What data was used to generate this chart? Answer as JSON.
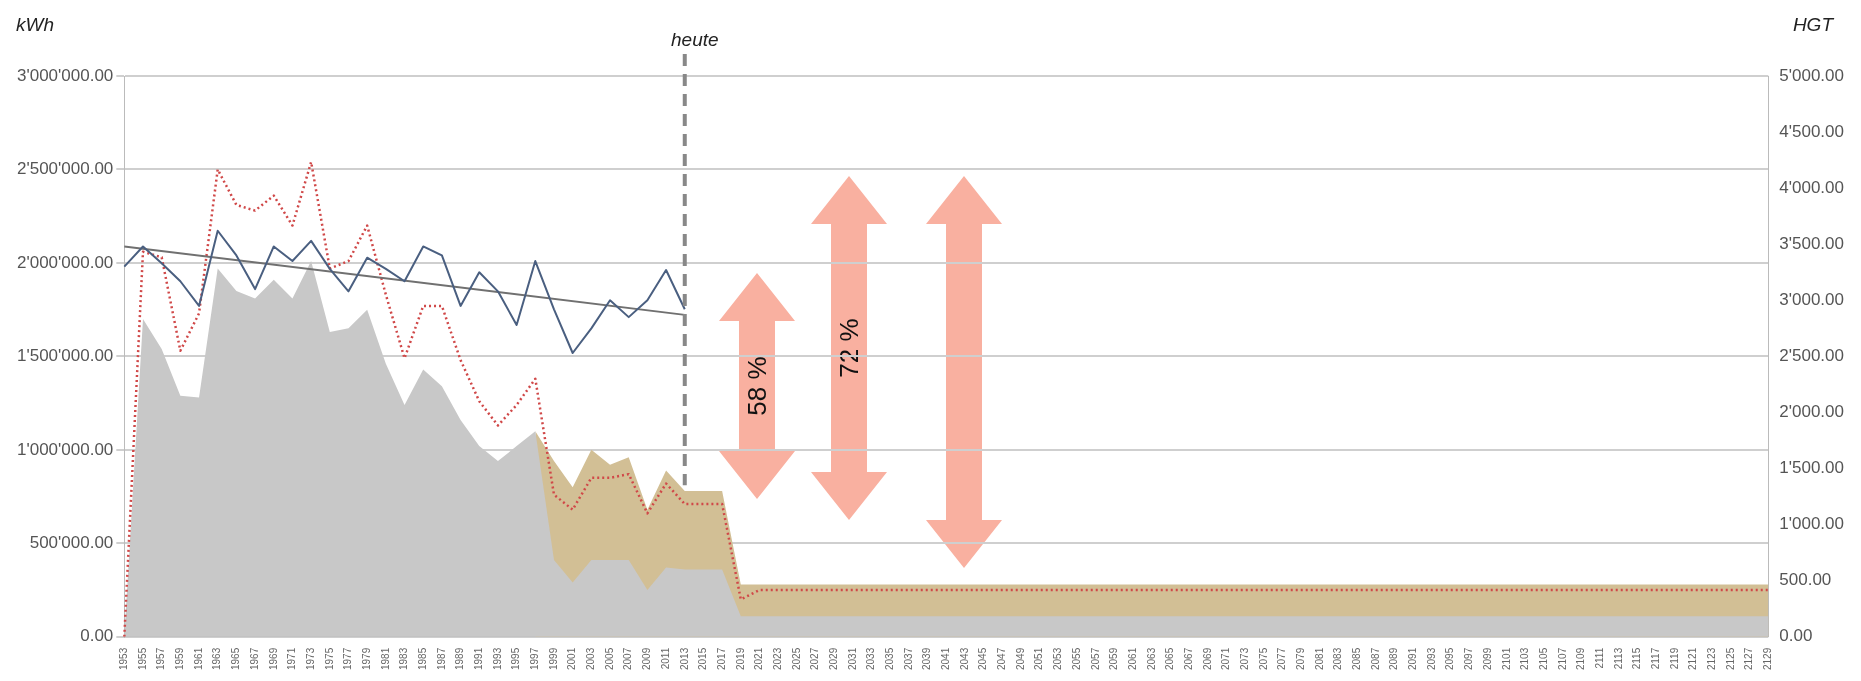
{
  "chart_data": {
    "type": "area",
    "ylabel": "kWh",
    "y2label": "HGT",
    "categories": [
      "1953",
      "1955",
      "1957",
      "1959",
      "1961",
      "1963",
      "1965",
      "1967",
      "1969",
      "1971",
      "1973",
      "1975",
      "1977",
      "1979",
      "1981",
      "1983",
      "1985",
      "1987",
      "1989",
      "1991",
      "1993",
      "1995",
      "1997",
      "1999",
      "2001",
      "2003",
      "2005",
      "2007",
      "2009",
      "2011",
      "2013",
      "2015",
      "2017",
      "2019",
      "2021",
      "2023",
      "2025",
      "2027",
      "2029",
      "2031",
      "2033",
      "2035",
      "2037",
      "2039",
      "2041",
      "2043",
      "2045",
      "2047",
      "2049",
      "2051",
      "2053",
      "2055",
      "2057",
      "2059",
      "2061",
      "2063",
      "2065",
      "2067",
      "2069",
      "2071",
      "2073",
      "2075",
      "2077",
      "2079",
      "2081",
      "2083",
      "2085",
      "2087",
      "2089",
      "2091",
      "2093",
      "2095",
      "2097",
      "2099",
      "2101",
      "2103",
      "2105",
      "2107",
      "2109",
      "2111",
      "2113",
      "2115",
      "2117",
      "2119",
      "2121",
      "2123",
      "2125",
      "2127",
      "2129"
    ],
    "series": [
      {
        "type": "line",
        "axis": "y2",
        "color": "#4a5f80",
        "line_style": "solid",
        "values": [
          3300,
          3480,
          3330,
          3170,
          2950,
          3620,
          3400,
          3100,
          3480,
          3350,
          3530,
          3280,
          3080,
          3380,
          3280,
          3170,
          3480,
          3400,
          2950,
          3250,
          3080,
          2780,
          3350,
          2920,
          2530,
          2750,
          3000,
          2850,
          3000,
          3270,
          2920,
          null,
          null,
          null,
          null,
          null,
          null,
          null,
          null,
          null,
          null,
          null,
          null,
          null,
          null,
          null,
          null,
          null,
          null,
          null,
          null,
          null,
          null,
          null,
          null,
          null,
          null,
          null,
          null,
          null,
          null,
          null,
          null,
          null,
          null,
          null,
          null,
          null,
          null,
          null,
          null,
          null,
          null,
          null,
          null,
          null,
          null,
          null,
          null,
          null,
          null,
          null,
          null,
          null,
          null,
          null,
          null,
          null,
          null
        ]
      },
      {
        "type": "line",
        "axis": "y2",
        "color": "#707070",
        "line_style": "solid",
        "values": [
          3480,
          null,
          null,
          null,
          null,
          null,
          null,
          null,
          null,
          null,
          null,
          null,
          null,
          null,
          null,
          null,
          null,
          null,
          null,
          null,
          null,
          null,
          null,
          null,
          null,
          null,
          null,
          null,
          null,
          null,
          2870,
          null,
          null,
          null,
          null,
          null,
          null,
          null,
          null,
          null,
          null,
          null,
          null,
          null,
          null,
          null,
          null,
          null,
          null,
          null,
          null,
          null,
          null,
          null,
          null,
          null,
          null,
          null,
          null,
          null,
          null,
          null,
          null,
          null,
          null,
          null,
          null,
          null,
          null,
          null,
          null,
          null,
          null,
          null,
          null,
          null,
          null,
          null,
          null,
          null,
          null,
          null,
          null,
          null,
          null,
          null,
          null,
          null,
          null
        ]
      },
      {
        "type": "line",
        "color": "#d04848",
        "line_style": "dotted",
        "values": [
          0,
          2060000,
          2030000,
          1530000,
          1730000,
          2500000,
          2310000,
          2280000,
          2360000,
          2200000,
          2540000,
          1970000,
          2010000,
          2200000,
          1830000,
          1490000,
          1770000,
          1770000,
          1480000,
          1260000,
          1130000,
          1240000,
          1380000,
          760000,
          680000,
          850000,
          850000,
          870000,
          660000,
          820000,
          710000,
          710000,
          710000,
          200000,
          250000,
          250000,
          250000,
          250000,
          250000,
          250000,
          250000,
          250000,
          250000,
          250000,
          250000,
          250000,
          250000,
          250000,
          250000,
          250000,
          250000,
          250000,
          250000,
          250000,
          250000,
          250000,
          250000,
          250000,
          250000,
          250000,
          250000,
          250000,
          250000,
          250000,
          250000,
          250000,
          250000,
          250000,
          250000,
          250000,
          250000,
          250000,
          250000,
          250000,
          250000,
          250000,
          250000,
          250000,
          250000,
          250000,
          250000,
          250000,
          250000,
          250000,
          250000,
          250000,
          250000,
          250000,
          250000
        ]
      },
      {
        "color": "#c8c8c8",
        "values": [
          0,
          1700000,
          1540000,
          1290000,
          1280000,
          1970000,
          1850000,
          1810000,
          1910000,
          1810000,
          2010000,
          1630000,
          1650000,
          1750000,
          1460000,
          1240000,
          1430000,
          1340000,
          1160000,
          1020000,
          940000,
          1020000,
          1100000,
          410000,
          290000,
          410000,
          410000,
          410000,
          250000,
          370000,
          360000,
          360000,
          360000,
          110000,
          110000,
          110000,
          110000,
          110000,
          110000,
          110000,
          110000,
          110000,
          110000,
          110000,
          110000,
          110000,
          110000,
          110000,
          110000,
          110000,
          110000,
          110000,
          110000,
          110000,
          110000,
          110000,
          110000,
          110000,
          110000,
          110000,
          110000,
          110000,
          110000,
          110000,
          110000,
          110000,
          110000,
          110000,
          110000,
          110000,
          110000,
          110000,
          110000,
          110000,
          110000,
          110000,
          110000,
          110000,
          110000,
          110000,
          110000,
          110000,
          110000,
          110000,
          110000,
          110000,
          110000,
          110000,
          110000
        ]
      },
      {
        "color": "#d2bf95",
        "values": [
          null,
          null,
          null,
          null,
          null,
          null,
          null,
          null,
          null,
          null,
          null,
          null,
          null,
          null,
          null,
          null,
          null,
          null,
          null,
          null,
          null,
          null,
          1100000,
          940000,
          800000,
          1000000,
          920000,
          960000,
          680000,
          890000,
          780000,
          780000,
          780000,
          280000,
          280000,
          280000,
          280000,
          280000,
          280000,
          280000,
          280000,
          280000,
          280000,
          280000,
          280000,
          280000,
          280000,
          280000,
          280000,
          280000,
          280000,
          280000,
          280000,
          280000,
          280000,
          280000,
          280000,
          280000,
          280000,
          280000,
          280000,
          280000,
          280000,
          280000,
          280000,
          280000,
          280000,
          280000,
          280000,
          280000,
          280000,
          280000,
          280000,
          280000,
          280000,
          280000,
          280000,
          280000,
          280000,
          280000,
          280000,
          280000,
          280000,
          280000,
          280000,
          280000,
          280000,
          280000,
          280000
        ]
      }
    ],
    "ylim": [
      0,
      3000000
    ],
    "yticks": [
      {
        "value": 0,
        "label": "0.00"
      },
      {
        "value": 500000,
        "label": "500'000.00"
      },
      {
        "value": 1000000,
        "label": "1'000'000.00"
      },
      {
        "value": 1500000,
        "label": "1'500'000.00"
      },
      {
        "value": 2000000,
        "label": "2'000'000.00"
      },
      {
        "value": 2500000,
        "label": "2'500'000.00"
      },
      {
        "value": 3000000,
        "label": "3'000'000.00"
      }
    ],
    "y2lim": [
      0,
      5000
    ],
    "y2ticks": [
      {
        "value": 0,
        "label": "0.00"
      },
      {
        "value": 500,
        "label": "500.00"
      },
      {
        "value": 1000,
        "label": "1'000.00"
      },
      {
        "value": 1500,
        "label": "1'500.00"
      },
      {
        "value": 2000,
        "label": "2'000.00"
      },
      {
        "value": 2500,
        "label": "2'500.00"
      },
      {
        "value": 3000,
        "label": "3'000.00"
      },
      {
        "value": 3500,
        "label": "3'500.00"
      },
      {
        "value": 4000,
        "label": "4'000.00"
      },
      {
        "value": 4500,
        "label": "4'500.00"
      },
      {
        "value": 5000,
        "label": "5'000.00"
      }
    ],
    "ref_lines": [
      {
        "axis": "x",
        "value": "2013",
        "label": "heute",
        "color": "#888888",
        "line_style": "dashed"
      }
    ],
    "annotations": [
      "58 %",
      "72 %"
    ],
    "grid": "y",
    "legend": false
  }
}
